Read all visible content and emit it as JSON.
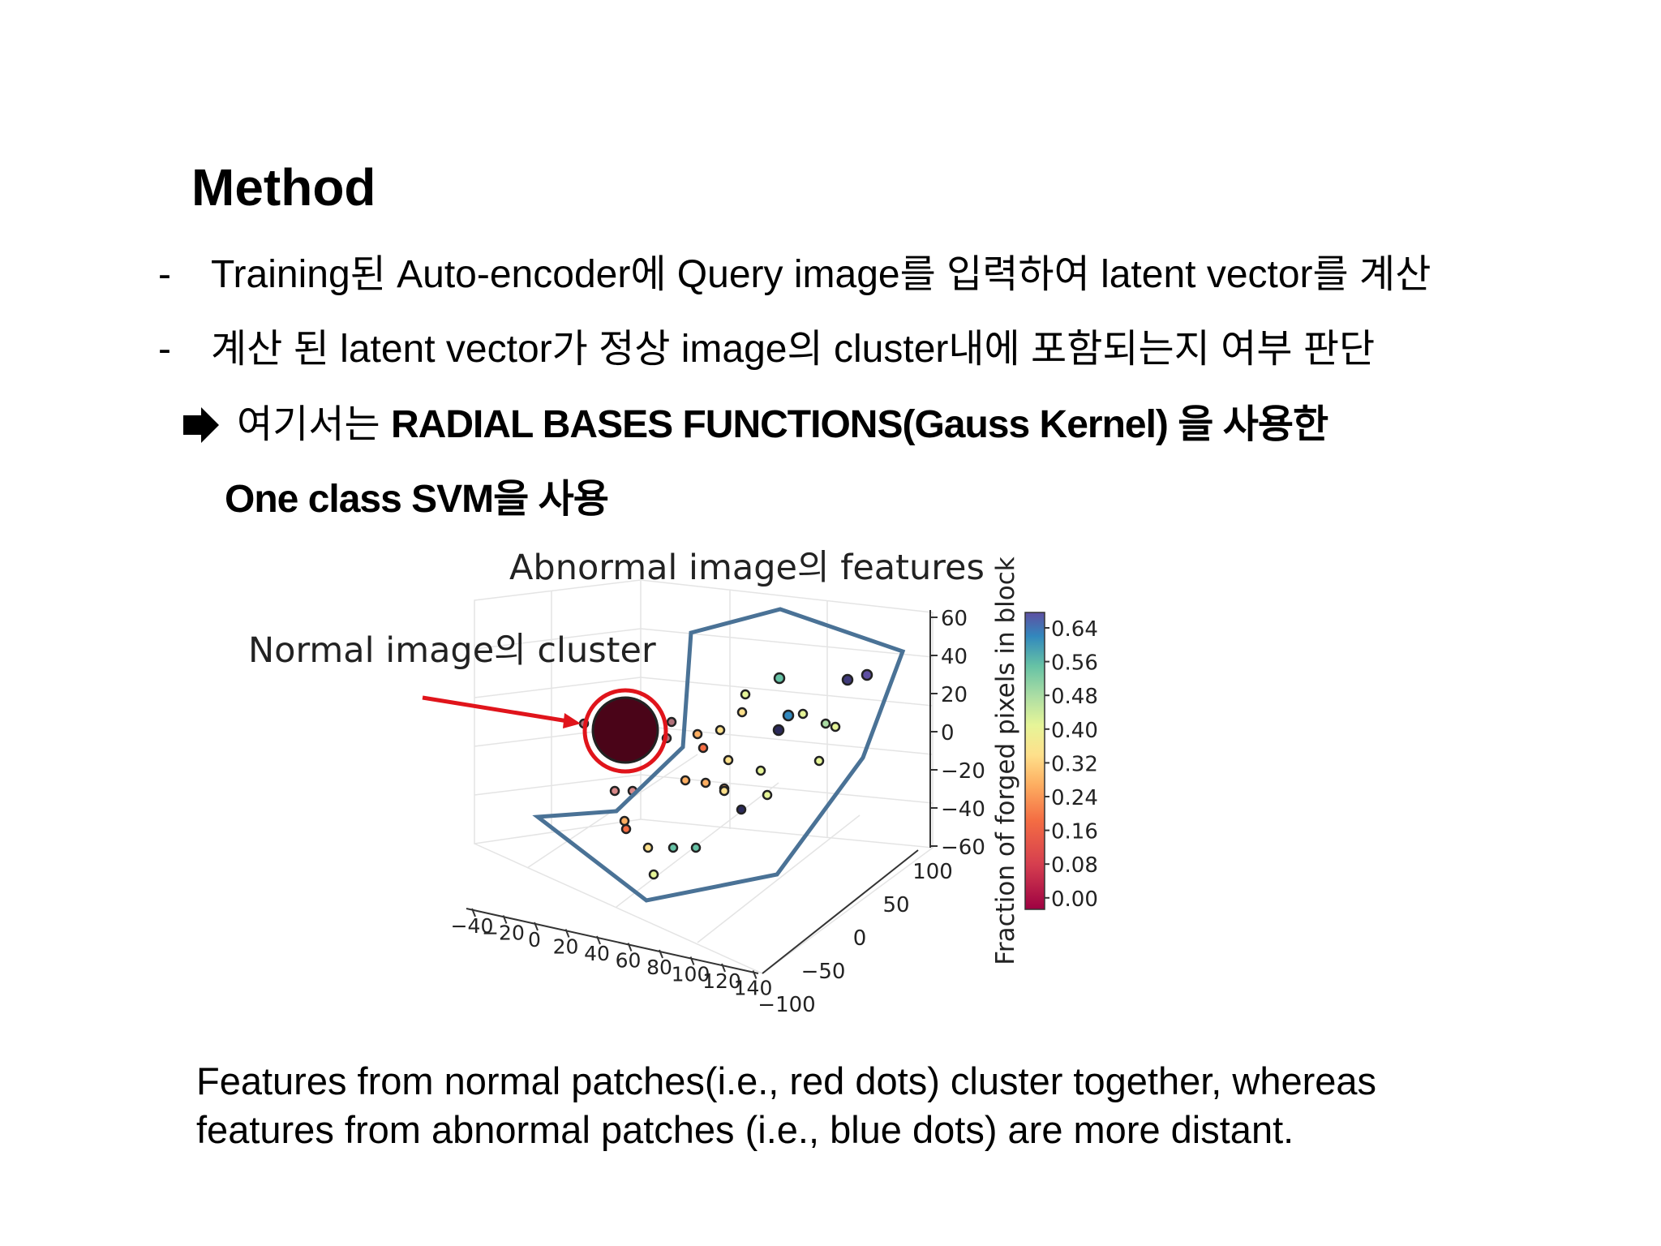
{
  "title": "Method",
  "bullets": [
    {
      "marker": "-",
      "text": "Training된 Auto-encoder에 Query image를 입력하여 latent vector를 계산"
    },
    {
      "marker": "-",
      "text": "계산 된 latent vector가 정상 image의 cluster내에 포함되는지 여부 판단"
    }
  ],
  "conclusion": {
    "lead": "여기서는",
    "emphasis": "RADIAL BASES FUNCTIONS(Gauss Kernel)  을 사용한",
    "continuation": "One class SVM을 사용"
  },
  "figure": {
    "annotations": {
      "abnormal": "Abnormal image의 features",
      "normal": "Normal image의 cluster"
    },
    "colorbar_label": "Fraction of forged pixels in block",
    "colorbar_ticks": [
      "0.64",
      "0.56",
      "0.48",
      "0.40",
      "0.32",
      "0.24",
      "0.16",
      "0.08",
      "0.00"
    ],
    "z_ticks": [
      "60",
      "40",
      "20",
      "0",
      "−20",
      "−40",
      "−60"
    ],
    "y_ticks": [
      "100",
      "50",
      "0",
      "−50",
      "−100"
    ],
    "x_ticks": [
      "−40",
      "−20",
      "0",
      "20",
      "40",
      "60",
      "80",
      "100",
      "120",
      "140"
    ]
  },
  "caption": [
    "Features from normal patches(i.e., red dots) cluster together, whereas",
    "features from abnormal patches (i.e., blue dots) are more distant."
  ]
}
